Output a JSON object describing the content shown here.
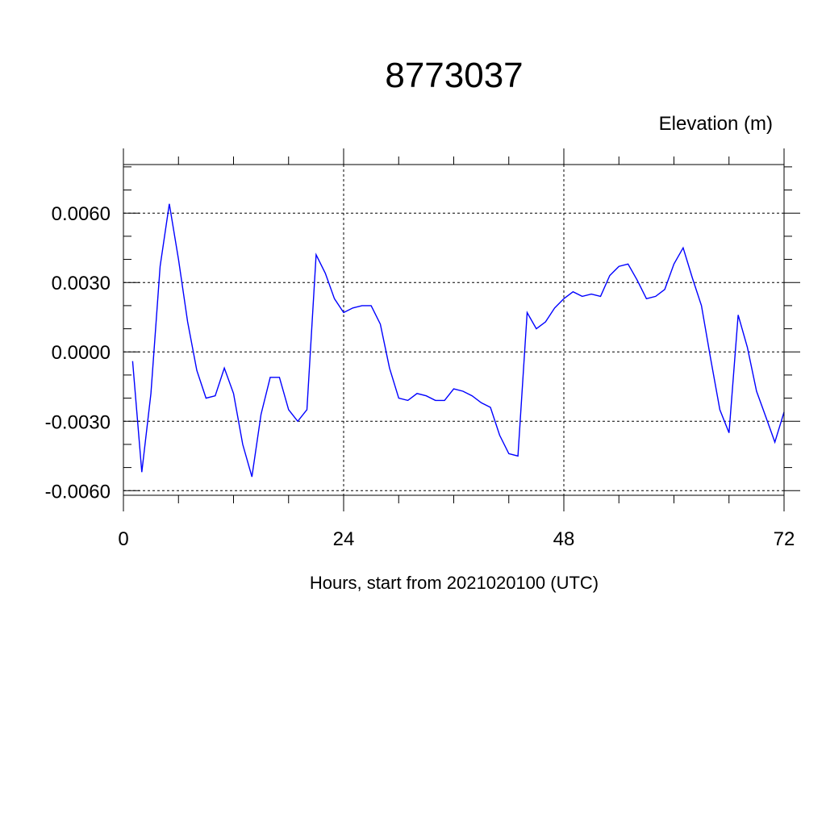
{
  "chart_data": {
    "type": "line",
    "title": "8773037",
    "ylabel": "Elevation (m)",
    "xlabel": "Hours, start from 2021020100 (UTC)",
    "xlim": [
      0,
      72
    ],
    "ylim": [
      -0.0062,
      0.0081
    ],
    "xticks": [
      0,
      24,
      48,
      72
    ],
    "xtick_labels": [
      "0",
      "24",
      "48",
      "72"
    ],
    "yticks": [
      -0.006,
      -0.003,
      0.0,
      0.003,
      0.006
    ],
    "ytick_labels": [
      "-0.0060",
      "-0.0030",
      "0.0000",
      "0.0030",
      "0.0060"
    ],
    "grid": true,
    "series": [
      {
        "color": "#0000ff",
        "x": [
          1,
          2,
          3,
          4,
          5,
          6,
          7,
          8,
          9,
          10,
          11,
          12,
          13,
          14,
          15,
          16,
          17,
          18,
          19,
          20,
          21,
          22,
          23,
          24,
          25,
          26,
          27,
          28,
          29,
          30,
          31,
          32,
          33,
          34,
          35,
          36,
          37,
          38,
          39,
          40,
          41,
          42,
          43,
          44,
          45,
          46,
          47,
          48,
          49,
          50,
          51,
          52,
          53,
          54,
          55,
          56,
          57,
          58,
          59,
          60,
          61,
          62,
          63,
          64,
          65,
          66,
          67,
          68,
          69,
          70,
          71,
          72
        ],
        "y": [
          -0.0004,
          -0.0052,
          -0.0018,
          0.0037,
          0.0064,
          0.004,
          0.0013,
          -0.0008,
          -0.002,
          -0.0019,
          -0.0007,
          -0.0018,
          -0.004,
          -0.0054,
          -0.0027,
          -0.0011,
          -0.0011,
          -0.0025,
          -0.003,
          -0.0025,
          0.0042,
          0.0034,
          0.0023,
          0.0017,
          0.0019,
          0.002,
          0.002,
          0.0012,
          -0.0007,
          -0.002,
          -0.0021,
          -0.0018,
          -0.0019,
          -0.0021,
          -0.0021,
          -0.0016,
          -0.0017,
          -0.0019,
          -0.0022,
          -0.0024,
          -0.0036,
          -0.0044,
          -0.0045,
          0.0017,
          0.001,
          0.0013,
          0.0019,
          0.0023,
          0.0026,
          0.0024,
          0.0025,
          0.0024,
          0.0033,
          0.0037,
          0.0038,
          0.0031,
          0.0023,
          0.0024,
          0.0027,
          0.0038,
          0.0045,
          0.0032,
          0.002,
          -0.0003,
          -0.0025,
          -0.0035,
          0.0016,
          0.0002,
          -0.0017,
          -0.0028,
          -0.0039,
          -0.0026
        ]
      }
    ]
  }
}
